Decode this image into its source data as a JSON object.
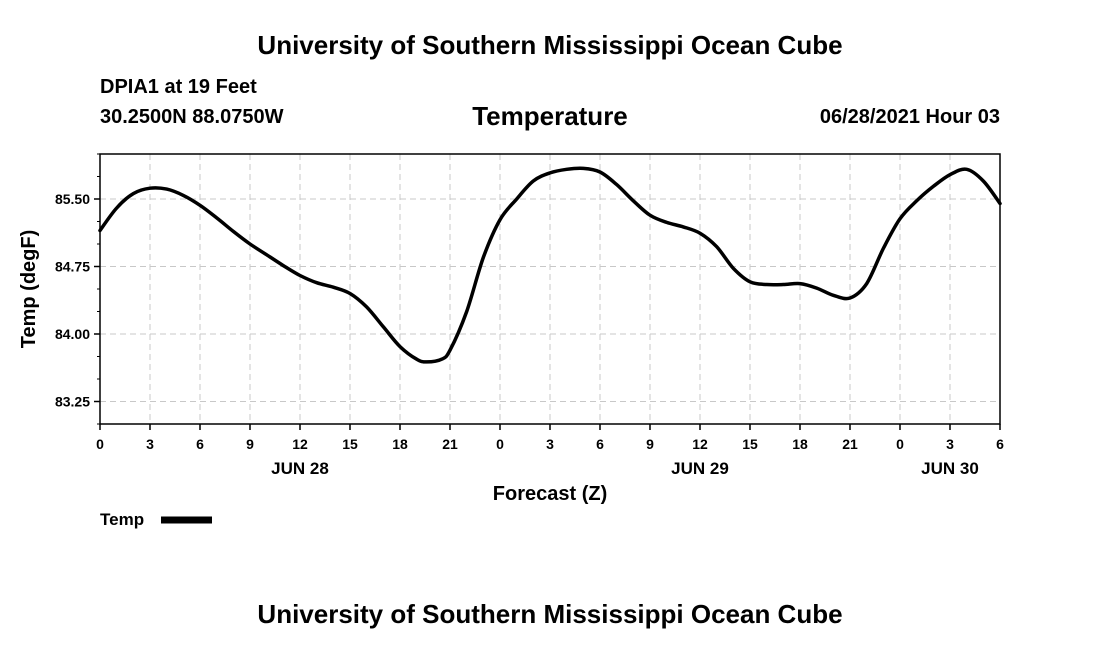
{
  "header": {
    "title_top": "University of Southern Mississippi Ocean Cube",
    "title_bottom": "University of Southern Mississippi Ocean Cube",
    "station": "DPIA1 at 19 Feet",
    "coords": "30.2500N  88.0750W",
    "parameter": "Temperature",
    "timestamp": "06/28/2021 Hour 03"
  },
  "chart_data": {
    "type": "line",
    "title": "Temperature",
    "xlabel": "Forecast (Z)",
    "ylabel": "Temp (degF)",
    "xlim": [
      0,
      54
    ],
    "ylim": [
      83.0,
      86.0
    ],
    "y_ticks": [
      "85.50",
      "84.75",
      "84.00",
      "83.25"
    ],
    "y_tick_values": [
      85.5,
      84.75,
      84.0,
      83.25
    ],
    "x_ticks": [
      "0",
      "3",
      "6",
      "9",
      "12",
      "15",
      "18",
      "21",
      "0",
      "3",
      "6",
      "9",
      "12",
      "15",
      "18",
      "21",
      "0",
      "3",
      "6"
    ],
    "x_tick_hours": [
      0,
      3,
      6,
      9,
      12,
      15,
      18,
      21,
      24,
      27,
      30,
      33,
      36,
      39,
      42,
      45,
      48,
      51,
      54
    ],
    "date_labels": [
      {
        "label": "JUN 28",
        "hour": 12
      },
      {
        "label": "JUN 29",
        "hour": 36
      },
      {
        "label": "JUN 30",
        "hour": 51
      }
    ],
    "grid": true,
    "legend": "bottom-left",
    "series": [
      {
        "name": "Temp",
        "color": "#000000",
        "x": [
          0,
          1,
          2,
          3,
          4,
          5,
          6,
          7,
          8,
          9,
          10,
          11,
          12,
          13,
          14,
          15,
          16,
          17,
          18,
          19,
          19.6,
          20.5,
          21,
          22,
          23,
          24,
          25,
          26,
          27,
          28,
          29,
          30,
          31,
          32,
          33,
          34,
          35,
          36,
          37,
          38,
          39,
          40,
          41,
          42,
          43,
          44,
          45,
          46,
          47,
          48,
          49,
          50,
          51,
          52,
          53,
          54
        ],
        "values": [
          85.15,
          85.4,
          85.56,
          85.62,
          85.61,
          85.54,
          85.43,
          85.29,
          85.14,
          85.0,
          84.88,
          84.76,
          84.65,
          84.57,
          84.52,
          84.45,
          84.3,
          84.08,
          83.86,
          83.72,
          83.69,
          83.72,
          83.82,
          84.25,
          84.85,
          85.27,
          85.5,
          85.7,
          85.79,
          85.83,
          85.84,
          85.8,
          85.66,
          85.48,
          85.32,
          85.24,
          85.19,
          85.12,
          84.97,
          84.73,
          84.58,
          84.55,
          84.55,
          84.56,
          84.51,
          84.43,
          84.4,
          84.56,
          84.95,
          85.28,
          85.48,
          85.64,
          85.77,
          85.83,
          85.7,
          85.45
        ]
      }
    ]
  },
  "legend": {
    "label": "Temp"
  }
}
